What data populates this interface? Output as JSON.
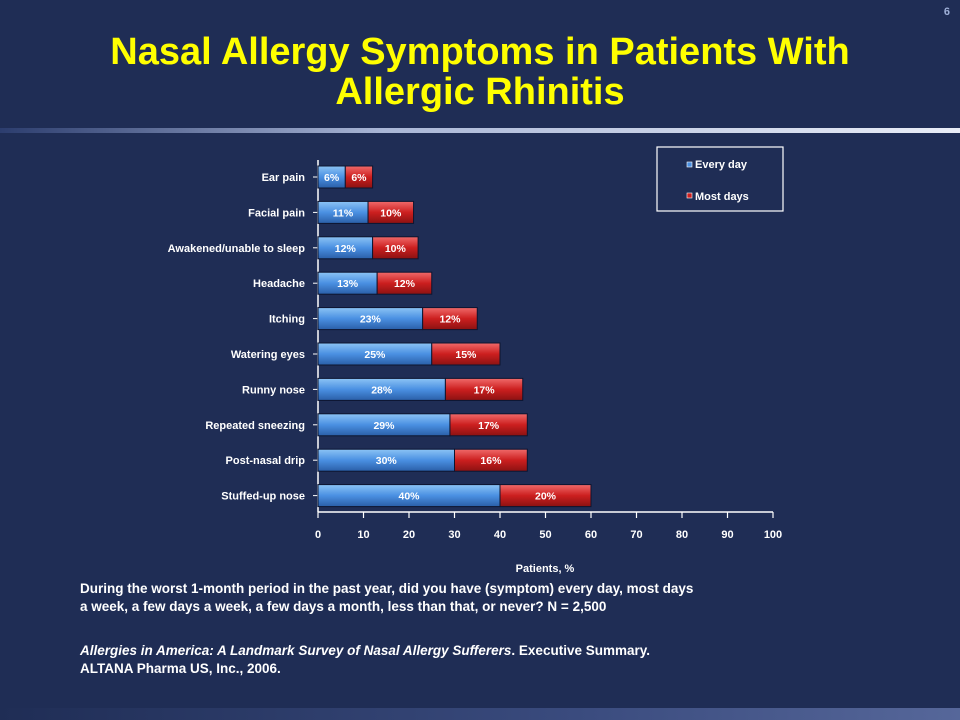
{
  "slide_number": "6",
  "title_line1": "Nasal Allergy Symptoms in Patients With",
  "title_line2": "Allergic Rhinitis",
  "question": "During the worst 1-month period in the past year, did you have (symptom) every day, most days a week, a few days a week, a few days a month, less than that, or never? N = 2,500",
  "source_italic": "Allergies in America: A Landmark Survey of Nasal Allergy Sufferers",
  "source_rest": ". Executive Summary. ALTANA Pharma US, Inc., 2006.",
  "colors": {
    "background": "#1f2d55",
    "title": "#ffff00",
    "every_day": "#4a90e2",
    "most_days": "#cc1f1f",
    "labels": "#ffffff"
  },
  "chart_data": {
    "type": "bar",
    "orientation": "horizontal",
    "stacked": true,
    "categories": [
      "Ear pain",
      "Facial pain",
      "Awakened/unable to sleep",
      "Headache",
      "Itching",
      "Watering eyes",
      "Runny nose",
      "Repeated sneezing",
      "Post-nasal drip",
      "Stuffed-up nose"
    ],
    "series": [
      {
        "name": "Every day",
        "values": [
          6,
          11,
          12,
          13,
          23,
          25,
          28,
          29,
          30,
          40
        ]
      },
      {
        "name": "Most days",
        "values": [
          6,
          10,
          10,
          12,
          12,
          15,
          17,
          17,
          16,
          20
        ]
      }
    ],
    "xlabel": "Patients, %",
    "ylabel": "",
    "xlim": [
      0,
      100
    ],
    "xticks": [
      0,
      10,
      20,
      30,
      40,
      50,
      60,
      70,
      80,
      90,
      100
    ],
    "legend_position": "top-right",
    "grid": false
  }
}
